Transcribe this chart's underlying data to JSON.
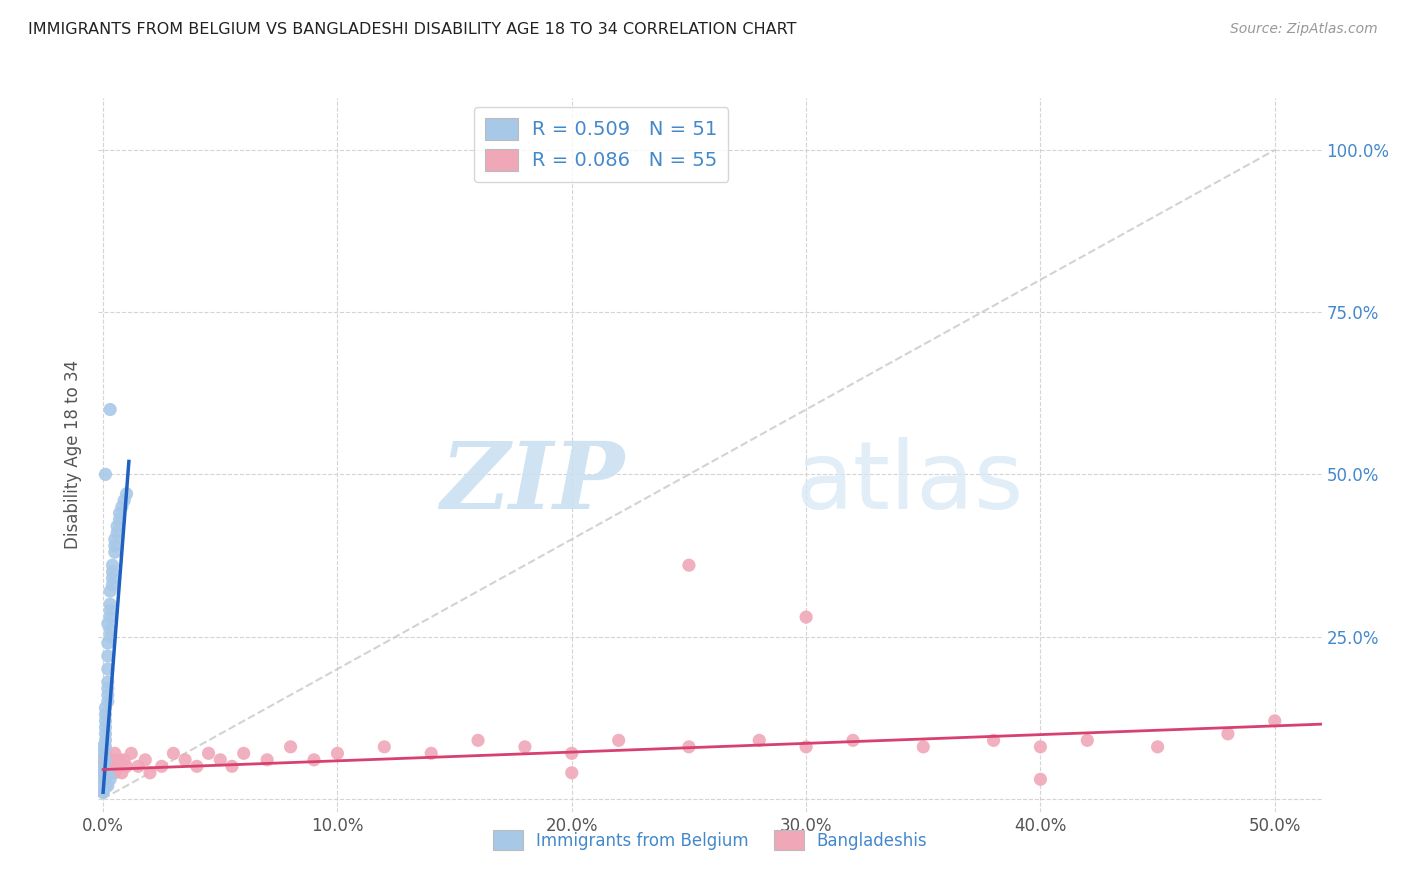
{
  "title": "IMMIGRANTS FROM BELGIUM VS BANGLADESHI DISABILITY AGE 18 TO 34 CORRELATION CHART",
  "source": "Source: ZipAtlas.com",
  "ylabel_label": "Disability Age 18 to 34",
  "legend_label1": "Immigrants from Belgium",
  "legend_label2": "Bangladeshis",
  "r1": 0.509,
  "n1": 51,
  "r2": 0.086,
  "n2": 55,
  "xlim": [
    -0.002,
    0.52
  ],
  "ylim": [
    -0.02,
    1.08
  ],
  "xticks": [
    0.0,
    0.1,
    0.2,
    0.3,
    0.4,
    0.5
  ],
  "xticklabels": [
    "0.0%",
    "10.0%",
    "20.0%",
    "30.0%",
    "40.0%",
    "50.0%"
  ],
  "yticks": [
    0.0,
    0.25,
    0.5,
    0.75,
    1.0
  ],
  "yticklabels_right": [
    "",
    "25.0%",
    "50.0%",
    "75.0%",
    "100.0%"
  ],
  "color_belgium": "#a8c8e8",
  "color_bangladesh": "#f0a8b8",
  "line_color_belgium": "#2060c0",
  "line_color_bangladesh": "#d84070",
  "diag_color": "#c8c8c8",
  "watermark_zip": "ZIP",
  "watermark_atlas": "atlas",
  "belgium_x": [
    0.0,
    0.0,
    0.0,
    0.0,
    0.001,
    0.0,
    0.0,
    0.001,
    0.001,
    0.001,
    0.001,
    0.001,
    0.001,
    0.002,
    0.002,
    0.002,
    0.002,
    0.002,
    0.002,
    0.002,
    0.003,
    0.003,
    0.003,
    0.003,
    0.003,
    0.003,
    0.004,
    0.004,
    0.004,
    0.004,
    0.005,
    0.005,
    0.005,
    0.006,
    0.006,
    0.007,
    0.007,
    0.008,
    0.009,
    0.01,
    0.0,
    0.0,
    0.001,
    0.001,
    0.002,
    0.002,
    0.003,
    0.001,
    0.002,
    0.001,
    0.003
  ],
  "belgium_y": [
    0.02,
    0.03,
    0.04,
    0.05,
    0.06,
    0.07,
    0.08,
    0.09,
    0.1,
    0.11,
    0.12,
    0.13,
    0.14,
    0.15,
    0.16,
    0.17,
    0.18,
    0.2,
    0.22,
    0.24,
    0.25,
    0.26,
    0.28,
    0.29,
    0.3,
    0.32,
    0.33,
    0.34,
    0.35,
    0.36,
    0.38,
    0.39,
    0.4,
    0.41,
    0.42,
    0.43,
    0.44,
    0.45,
    0.46,
    0.47,
    0.01,
    0.01,
    0.02,
    0.03,
    0.04,
    0.02,
    0.03,
    0.5,
    0.27,
    0.08,
    0.6
  ],
  "belgium_line_x": [
    0.0,
    0.011
  ],
  "belgium_line_y": [
    0.01,
    0.52
  ],
  "bangladesh_x": [
    0.0,
    0.0,
    0.0,
    0.001,
    0.001,
    0.001,
    0.002,
    0.002,
    0.003,
    0.003,
    0.004,
    0.005,
    0.005,
    0.006,
    0.007,
    0.008,
    0.009,
    0.01,
    0.012,
    0.015,
    0.018,
    0.02,
    0.025,
    0.03,
    0.035,
    0.04,
    0.045,
    0.05,
    0.055,
    0.06,
    0.07,
    0.08,
    0.09,
    0.1,
    0.12,
    0.14,
    0.16,
    0.18,
    0.2,
    0.22,
    0.25,
    0.28,
    0.3,
    0.32,
    0.35,
    0.38,
    0.4,
    0.42,
    0.45,
    0.48,
    0.25,
    0.3,
    0.5,
    0.2,
    0.4
  ],
  "bangladesh_y": [
    0.04,
    0.05,
    0.06,
    0.03,
    0.04,
    0.07,
    0.05,
    0.06,
    0.04,
    0.05,
    0.06,
    0.04,
    0.07,
    0.05,
    0.06,
    0.04,
    0.06,
    0.05,
    0.07,
    0.05,
    0.06,
    0.04,
    0.05,
    0.07,
    0.06,
    0.05,
    0.07,
    0.06,
    0.05,
    0.07,
    0.06,
    0.08,
    0.06,
    0.07,
    0.08,
    0.07,
    0.09,
    0.08,
    0.07,
    0.09,
    0.08,
    0.09,
    0.08,
    0.09,
    0.08,
    0.09,
    0.08,
    0.09,
    0.08,
    0.1,
    0.36,
    0.28,
    0.12,
    0.04,
    0.03
  ],
  "bangladesh_line_x": [
    0.0,
    0.52
  ],
  "bangladesh_line_y": [
    0.045,
    0.115
  ]
}
